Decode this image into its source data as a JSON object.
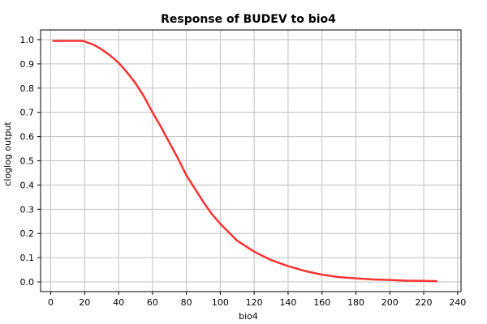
{
  "chart_data": {
    "type": "line",
    "title": "Response of BUDEV to bio4",
    "xlabel": "bio4",
    "ylabel": "cloglog output",
    "xlim": [
      -6,
      242
    ],
    "ylim": [
      -0.04,
      1.04
    ],
    "xticks": [
      0,
      20,
      40,
      60,
      80,
      100,
      120,
      140,
      160,
      180,
      200,
      220,
      240
    ],
    "yticks": [
      0.0,
      0.1,
      0.2,
      0.3,
      0.4,
      0.5,
      0.6,
      0.7,
      0.8,
      0.9,
      1.0
    ],
    "xtick_labels": [
      "0",
      "20",
      "40",
      "60",
      "80",
      "100",
      "120",
      "140",
      "160",
      "180",
      "200",
      "220",
      "240"
    ],
    "ytick_labels": [
      "0.0",
      "0.1",
      "0.2",
      "0.3",
      "0.4",
      "0.5",
      "0.6",
      "0.7",
      "0.8",
      "0.9",
      "1.0"
    ],
    "grid": true,
    "series_color": "#ff3333",
    "series": [
      {
        "x": [
          1,
          10,
          19,
          25,
          30,
          35,
          40,
          45,
          50,
          55,
          60,
          65,
          70,
          75,
          80,
          85,
          90,
          95,
          100,
          110,
          120,
          130,
          140,
          150,
          160,
          170,
          180,
          190,
          200,
          210,
          220,
          228
        ],
        "y": [
          0.995,
          0.995,
          0.995,
          0.98,
          0.96,
          0.935,
          0.905,
          0.865,
          0.82,
          0.765,
          0.7,
          0.64,
          0.575,
          0.51,
          0.44,
          0.385,
          0.33,
          0.28,
          0.24,
          0.17,
          0.125,
          0.09,
          0.065,
          0.045,
          0.03,
          0.02,
          0.015,
          0.01,
          0.008,
          0.005,
          0.004,
          0.003
        ]
      }
    ]
  }
}
